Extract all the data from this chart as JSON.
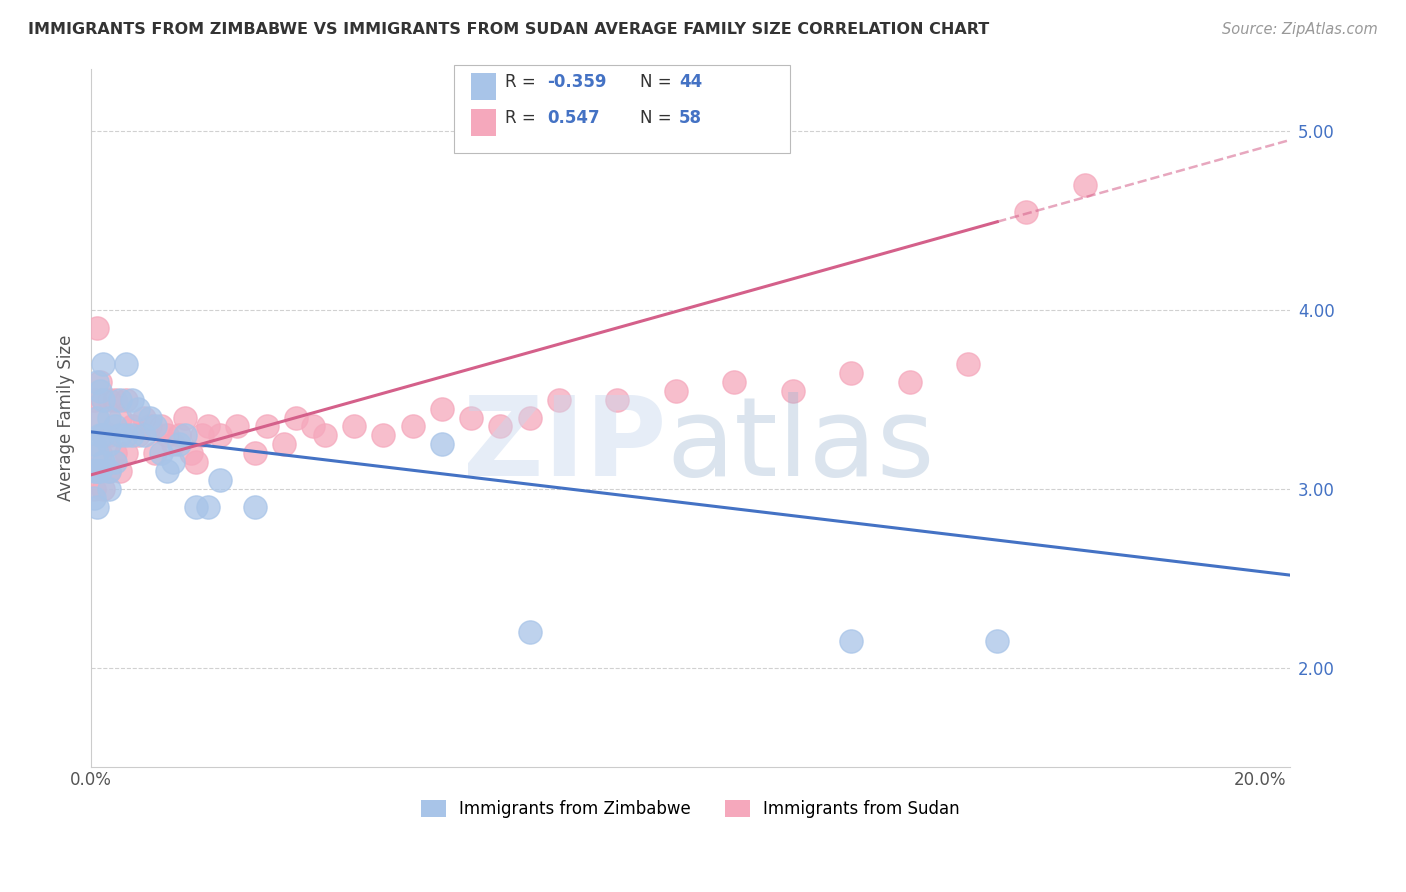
{
  "title": "IMMIGRANTS FROM ZIMBABWE VS IMMIGRANTS FROM SUDAN AVERAGE FAMILY SIZE CORRELATION CHART",
  "source": "Source: ZipAtlas.com",
  "ylabel": "Average Family Size",
  "xlim": [
    0.0,
    0.205
  ],
  "ylim": [
    1.45,
    5.35
  ],
  "yticks": [
    2.0,
    3.0,
    4.0,
    5.0
  ],
  "xticks": [
    0.0,
    0.05,
    0.1,
    0.15,
    0.2
  ],
  "xticklabels": [
    "0.0%",
    "",
    "",
    "",
    "20.0%"
  ],
  "yticklabels_right": [
    "2.00",
    "3.00",
    "4.00",
    "5.00"
  ],
  "zimbabwe_color": "#a8c4e8",
  "sudan_color": "#f5a8bc",
  "trend_zimbabwe_color": "#4472c4",
  "trend_sudan_color": "#d4608a",
  "zimbabwe_x": [
    0.0005,
    0.0005,
    0.0005,
    0.001,
    0.001,
    0.001,
    0.001,
    0.001,
    0.0015,
    0.0015,
    0.0015,
    0.002,
    0.002,
    0.002,
    0.002,
    0.003,
    0.003,
    0.003,
    0.003,
    0.004,
    0.004,
    0.005,
    0.005,
    0.006,
    0.006,
    0.007,
    0.007,
    0.008,
    0.009,
    0.01,
    0.011,
    0.012,
    0.013,
    0.014,
    0.015,
    0.016,
    0.018,
    0.02,
    0.022,
    0.028,
    0.06,
    0.075,
    0.13,
    0.155
  ],
  "zimbabwe_y": [
    3.25,
    3.1,
    2.95,
    3.6,
    3.4,
    3.2,
    3.1,
    2.9,
    3.55,
    3.3,
    3.1,
    3.7,
    3.5,
    3.3,
    3.15,
    3.4,
    3.25,
    3.1,
    3.0,
    3.35,
    3.15,
    3.5,
    3.3,
    3.7,
    3.3,
    3.5,
    3.3,
    3.45,
    3.3,
    3.4,
    3.35,
    3.2,
    3.1,
    3.15,
    3.25,
    3.3,
    2.9,
    2.9,
    3.05,
    2.9,
    3.25,
    2.2,
    2.15,
    2.15
  ],
  "sudan_x": [
    0.0005,
    0.0005,
    0.001,
    0.001,
    0.001,
    0.0015,
    0.0015,
    0.002,
    0.002,
    0.002,
    0.003,
    0.003,
    0.003,
    0.004,
    0.004,
    0.005,
    0.005,
    0.006,
    0.006,
    0.007,
    0.008,
    0.009,
    0.01,
    0.011,
    0.012,
    0.013,
    0.014,
    0.015,
    0.016,
    0.017,
    0.018,
    0.019,
    0.02,
    0.022,
    0.025,
    0.028,
    0.03,
    0.033,
    0.035,
    0.038,
    0.04,
    0.045,
    0.05,
    0.055,
    0.06,
    0.065,
    0.07,
    0.075,
    0.08,
    0.09,
    0.1,
    0.11,
    0.12,
    0.13,
    0.14,
    0.15,
    0.16,
    0.17
  ],
  "sudan_y": [
    3.5,
    3.0,
    3.9,
    3.4,
    3.1,
    3.6,
    3.2,
    3.5,
    3.3,
    3.0,
    3.5,
    3.3,
    3.1,
    3.5,
    3.2,
    3.4,
    3.1,
    3.5,
    3.2,
    3.35,
    3.3,
    3.4,
    3.35,
    3.2,
    3.35,
    3.3,
    3.25,
    3.3,
    3.4,
    3.2,
    3.15,
    3.3,
    3.35,
    3.3,
    3.35,
    3.2,
    3.35,
    3.25,
    3.4,
    3.35,
    3.3,
    3.35,
    3.3,
    3.35,
    3.45,
    3.4,
    3.35,
    3.4,
    3.5,
    3.5,
    3.55,
    3.6,
    3.55,
    3.65,
    3.6,
    3.7,
    4.55,
    4.7
  ],
  "trend_zim_x0": 0.0,
  "trend_zim_x1": 0.205,
  "trend_zim_y0": 3.32,
  "trend_zim_y1": 2.52,
  "trend_sud_x0": 0.0,
  "trend_sud_x1": 0.205,
  "trend_sud_y0": 3.08,
  "trend_sud_y1": 4.95,
  "trend_sud_solid_end": 0.155
}
